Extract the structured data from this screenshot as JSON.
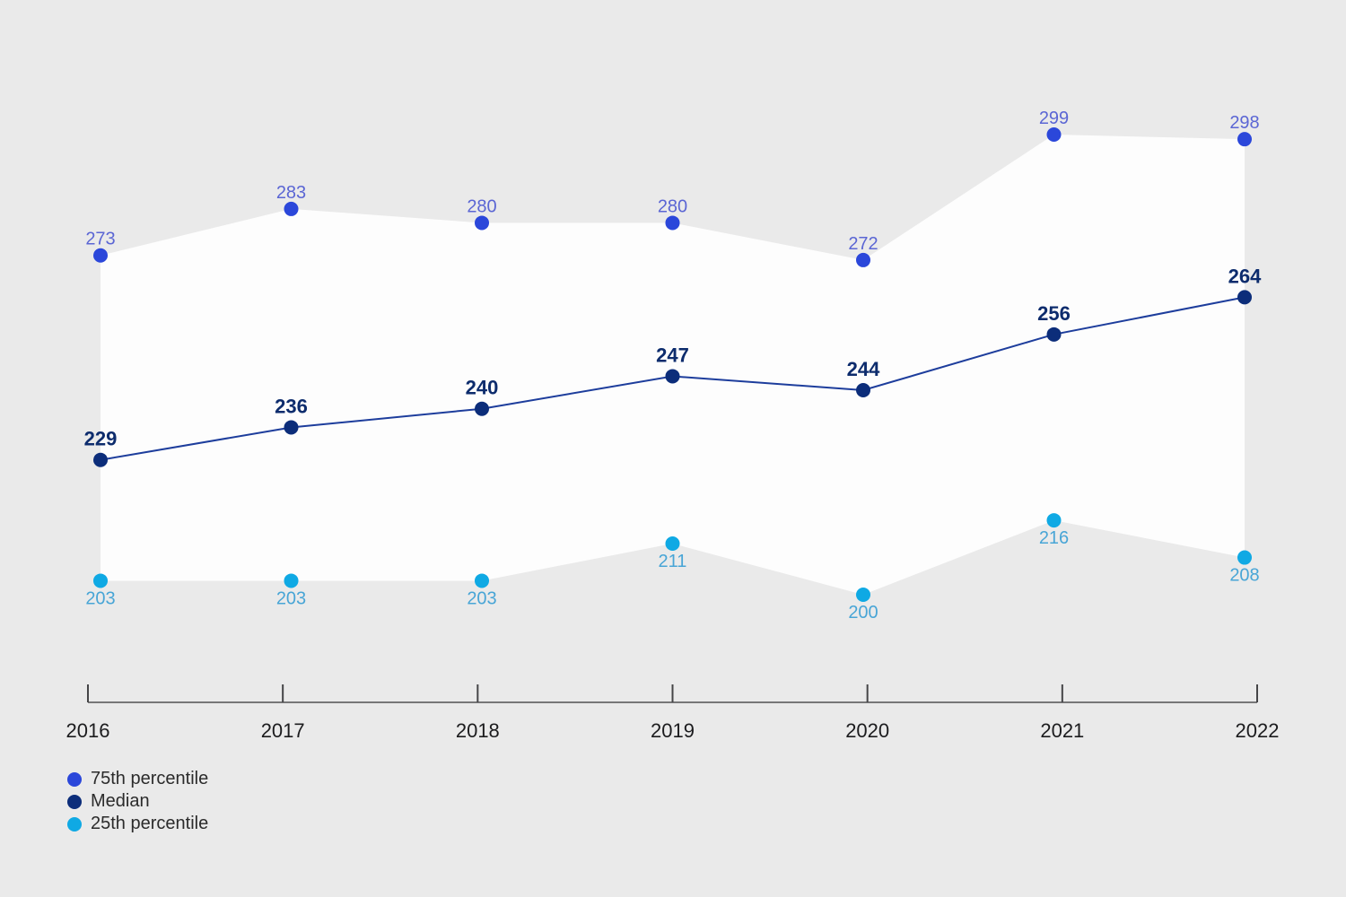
{
  "chart_data": {
    "type": "line",
    "title": "",
    "xlabel": "",
    "ylabel": "",
    "categories": [
      "2016",
      "2017",
      "2018",
      "2019",
      "2020",
      "2021",
      "2022"
    ],
    "series": [
      {
        "name": "75th percentile",
        "values": [
          273,
          283,
          280,
          280,
          272,
          299,
          298
        ]
      },
      {
        "name": "Median",
        "values": [
          229,
          236,
          240,
          247,
          244,
          256,
          264
        ]
      },
      {
        "name": "25th percentile",
        "values": [
          203,
          203,
          203,
          211,
          200,
          216,
          208
        ]
      }
    ],
    "band_between": "25th and 75th percentile (white area on gray background)",
    "value_labels": "shown at every data point",
    "grid": false,
    "y_axis_shown": false,
    "legend_position": "bottom-left"
  },
  "colors": {
    "background": "#eaeaea",
    "band": "#fdfdfd",
    "p75_dot": "#2b47da",
    "p75_label": "#5b66d4",
    "median_dot": "#0c2d7a",
    "median_line": "#1d3d9c",
    "median_label": "#0d2c6d",
    "p25_dot": "#0fa9e4",
    "p25_label": "#48a5d6",
    "axis_line": "#515153",
    "axis_tick": "#454547",
    "axis_label": "#1c1c1e",
    "legend_text": "#2b2b2b"
  }
}
